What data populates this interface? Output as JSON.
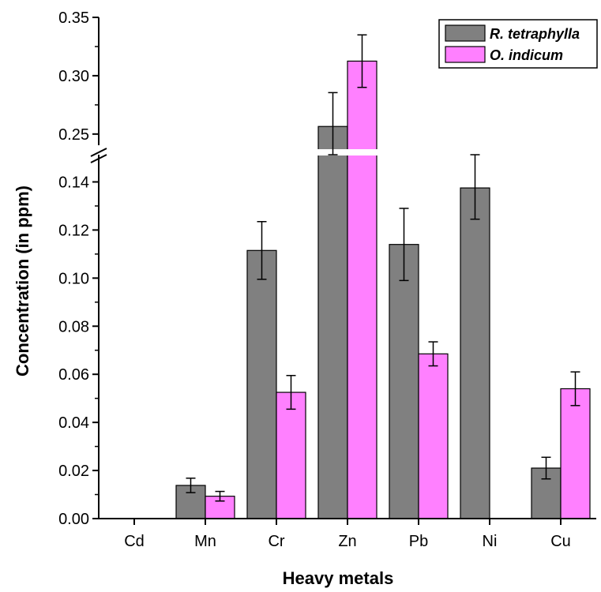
{
  "chart_data": {
    "type": "bar",
    "xlabel": "Heavy metals",
    "ylabel": "Concentration (in ppm)",
    "categories": [
      "Cd",
      "Mn",
      "Cr",
      "Zn",
      "Pb",
      "Ni",
      "Cu"
    ],
    "series": [
      {
        "name": "R. tetraphylla",
        "color": "#808080",
        "values": [
          0.0,
          0.0138,
          0.1115,
          0.2565,
          0.114,
          0.1375,
          0.021
        ],
        "errors": [
          0.0,
          0.003,
          0.012,
          0.029,
          0.015,
          0.013,
          0.0045
        ]
      },
      {
        "name": "O. indicum",
        "color": "#ff80ff",
        "values": [
          0.0,
          0.0093,
          0.0525,
          0.3125,
          0.0685,
          0.0,
          0.054
        ],
        "errors": [
          0.0,
          0.002,
          0.007,
          0.0225,
          0.005,
          0.0,
          0.007
        ]
      }
    ],
    "axis_break": [
      0.15,
      0.235
    ],
    "lower_ylim": [
      0,
      0.15
    ],
    "upper_ylim": [
      0.235,
      0.35
    ],
    "lower_ticks": [
      {
        "value": 0.0,
        "label": "0.00"
      },
      {
        "value": 0.02,
        "label": "0.02"
      },
      {
        "value": 0.04,
        "label": "0.04"
      },
      {
        "value": 0.06,
        "label": "0.06"
      },
      {
        "value": 0.08,
        "label": "0.08"
      },
      {
        "value": 0.1,
        "label": "0.10"
      },
      {
        "value": 0.12,
        "label": "0.12"
      },
      {
        "value": 0.14,
        "label": "0.14"
      }
    ],
    "upper_ticks": [
      {
        "value": 0.25,
        "label": "0.25"
      },
      {
        "value": 0.3,
        "label": "0.30"
      },
      {
        "value": 0.35,
        "label": "0.35"
      }
    ],
    "legend_position": "top-right",
    "grid": false
  }
}
